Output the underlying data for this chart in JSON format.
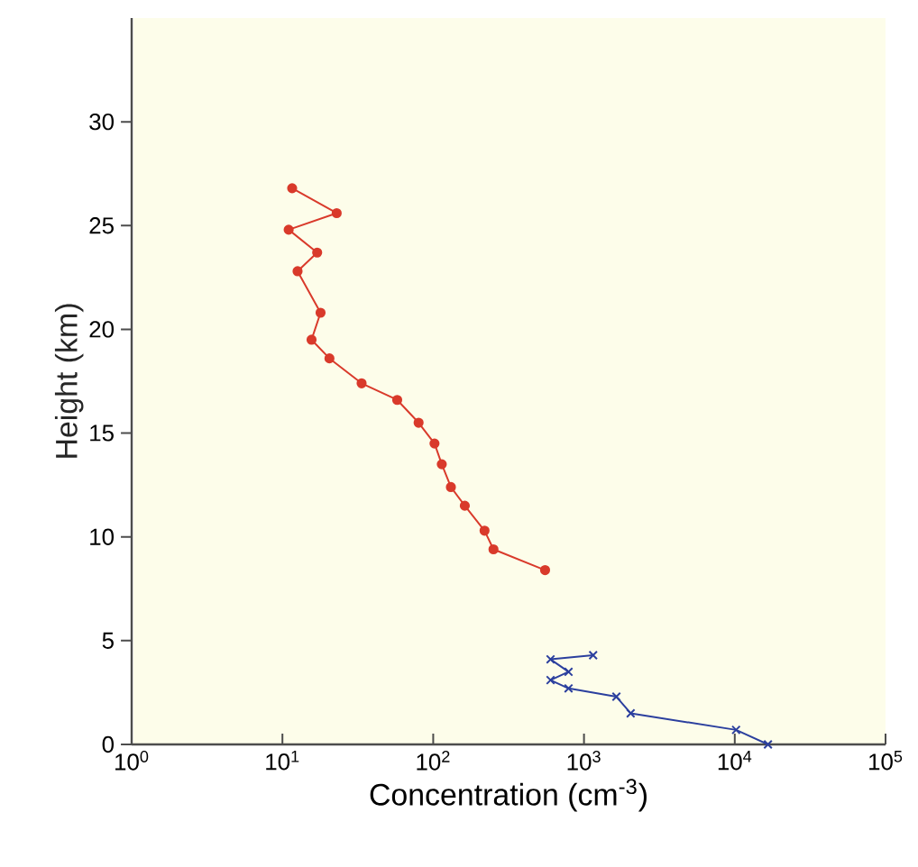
{
  "chart_data": {
    "type": "line",
    "xlabel": "Concentration  (cm$^{-3}$)",
    "ylabel": "Height (km)",
    "log": "x",
    "xlim": [
      1,
      100000
    ],
    "ylim": [
      0,
      35
    ],
    "xticks": [
      {
        "value": 1,
        "label": "10$^{0}$"
      },
      {
        "value": 10,
        "label": "10$^{1}$"
      },
      {
        "value": 100,
        "label": "10$^{2}$"
      },
      {
        "value": 1000,
        "label": "10$^{3}$"
      },
      {
        "value": 10000,
        "label": "10$^{4}$"
      },
      {
        "value": 100000,
        "label": "10$^{5}$"
      }
    ],
    "yticks": [
      0,
      5,
      10,
      15,
      20,
      25,
      30
    ],
    "grid": false,
    "line_style": "solid",
    "series": [
      {
        "color": "#d93a2b",
        "marker": "circle",
        "x": [
          11.6,
          22.9,
          11,
          17,
          12.6,
          17.9,
          15.6,
          20.5,
          33.5,
          57.7,
          80,
          102,
          114,
          131,
          162,
          219,
          251,
          552
        ],
        "values": [
          26.8,
          25.6,
          24.8,
          23.7,
          22.8,
          20.8,
          19.5,
          18.6,
          17.4,
          16.6,
          15.5,
          14.5,
          13.5,
          12.4,
          11.5,
          10.3,
          9.4,
          8.4
        ]
      },
      {
        "color": "#2b3f9e",
        "marker": "cross",
        "x": [
          1150,
          600,
          790,
          600,
          790,
          1640,
          2040,
          10200,
          16600
        ],
        "values": [
          4.3,
          4.1,
          3.5,
          3.1,
          2.7,
          2.3,
          1.5,
          0.7,
          0.0
        ]
      }
    ]
  }
}
